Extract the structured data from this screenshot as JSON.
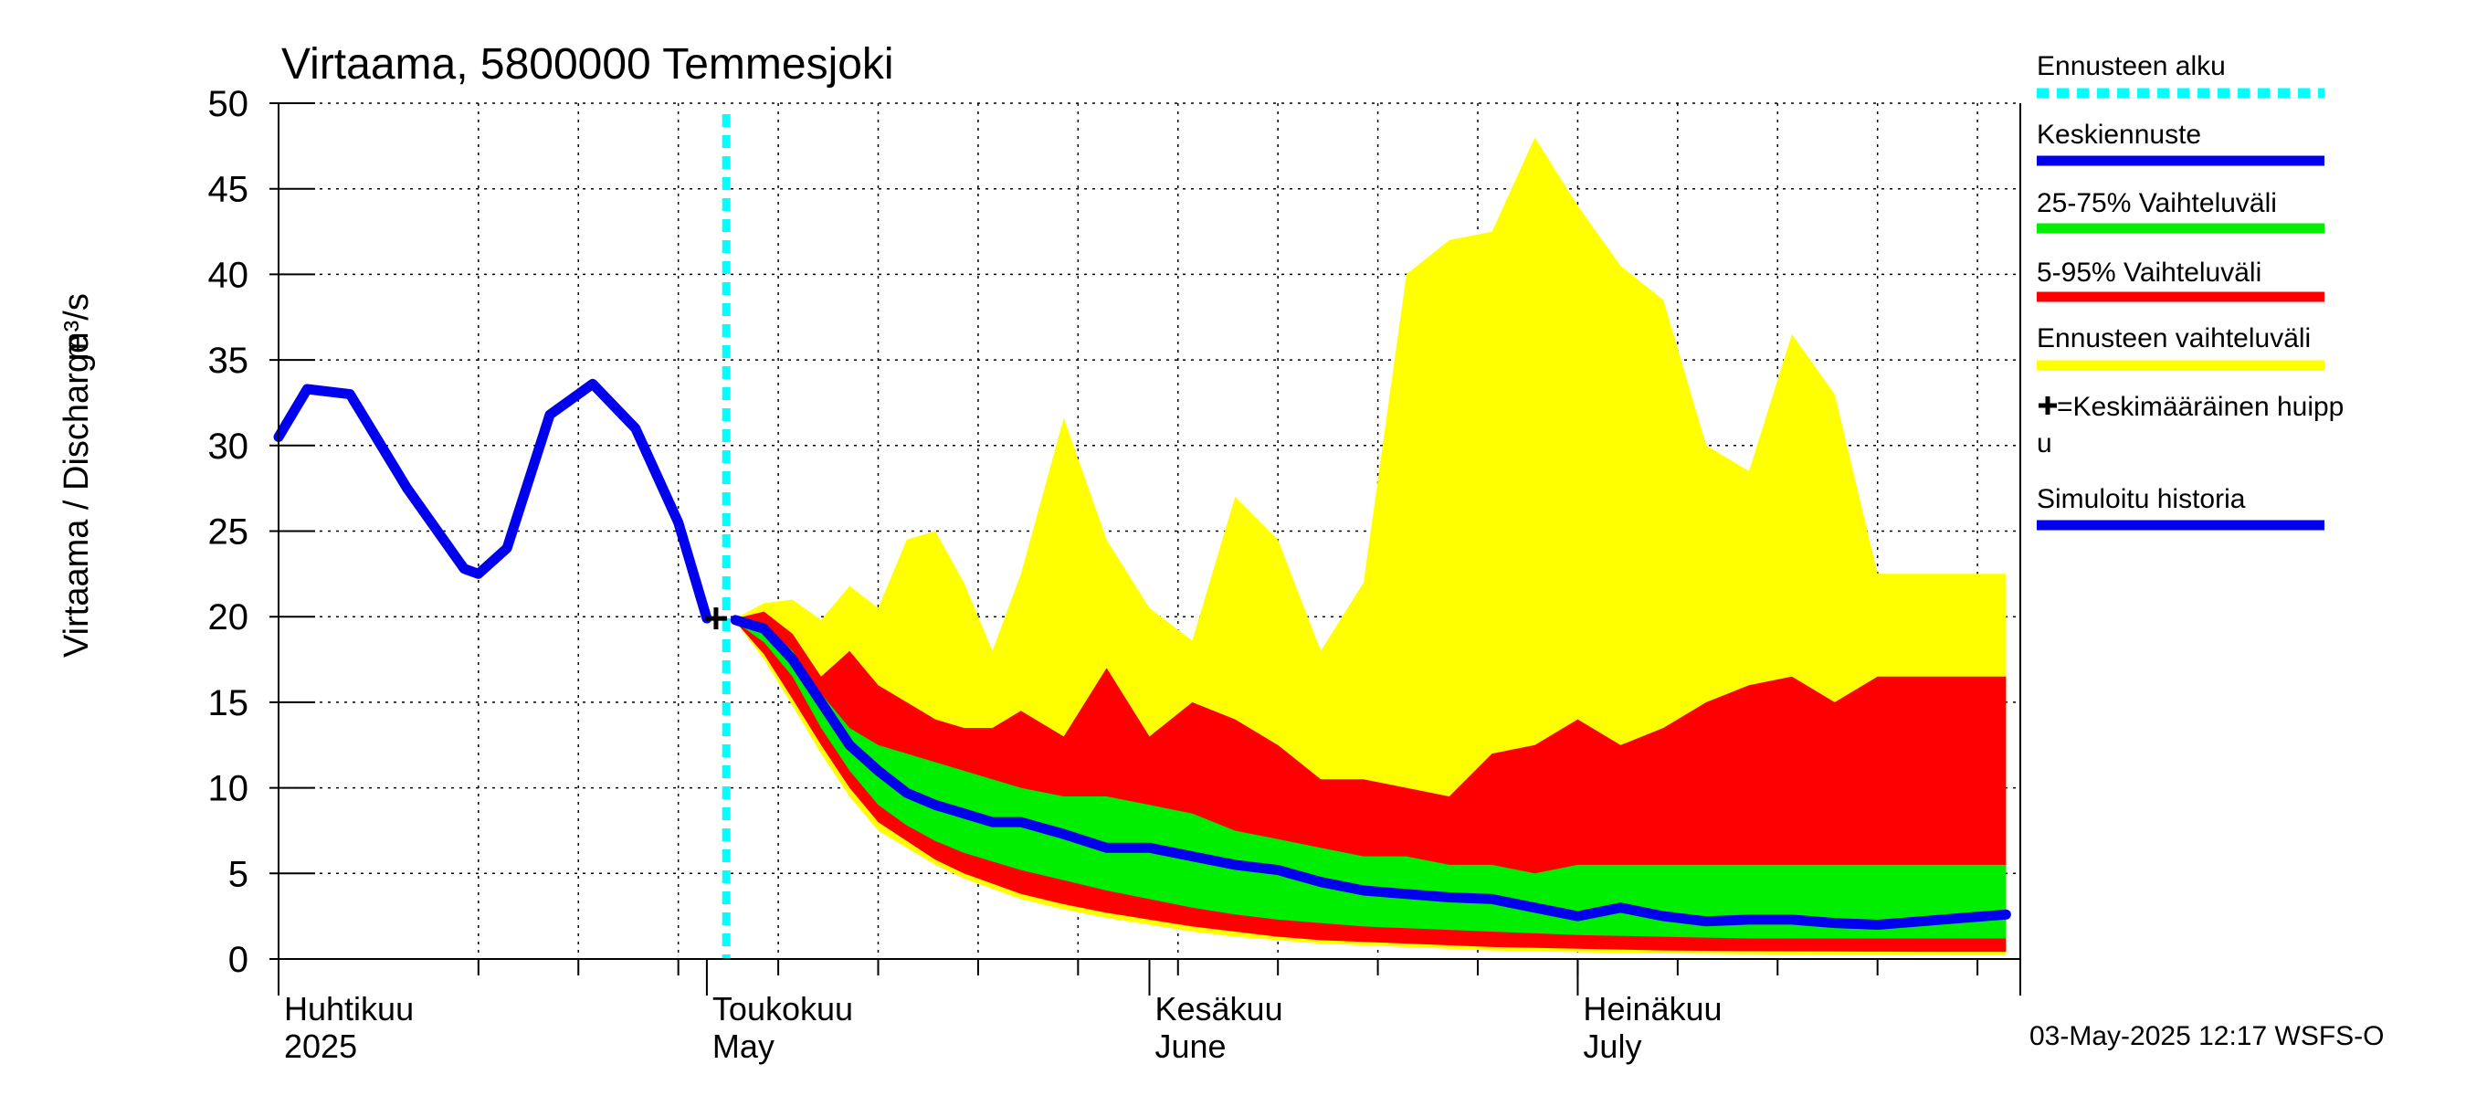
{
  "chart_data": {
    "type": "area",
    "title": "Virtaama, 5800000 Temmesjoki",
    "ylabel": "Virtaama / Discharge",
    "yunit": "m³/s",
    "ylim": [
      0,
      50
    ],
    "yticks": [
      "0",
      "5",
      "10",
      "15",
      "20",
      "25",
      "30",
      "35",
      "40",
      "45",
      "50"
    ],
    "xlim": [
      "2025-04-01",
      "2025-07-31"
    ],
    "grid": true,
    "legend_position": "right",
    "month_ticks": [
      {
        "date": "2025-04-01",
        "label": "Huhtikuu",
        "sublabel": "2025"
      },
      {
        "date": "2025-05-01",
        "label": "Toukokuu",
        "sublabel": "May"
      },
      {
        "date": "2025-06-01",
        "label": "Kesäkuu",
        "sublabel": "June"
      },
      {
        "date": "2025-07-01",
        "label": "Heinäkuu",
        "sublabel": "July"
      }
    ],
    "forecast_start": "2025-05-03",
    "mean_peak": {
      "date": "2025-05-01",
      "value": 19.9
    },
    "x": [
      "2025-04-01",
      "2025-04-03",
      "2025-04-06",
      "2025-04-10",
      "2025-04-14",
      "2025-04-15",
      "2025-04-17",
      "2025-04-20",
      "2025-04-23",
      "2025-04-26",
      "2025-04-29",
      "2025-05-01",
      "2025-05-03",
      "2025-05-05",
      "2025-05-07",
      "2025-05-09",
      "2025-05-11",
      "2025-05-13",
      "2025-05-15",
      "2025-05-17",
      "2025-05-19",
      "2025-05-21",
      "2025-05-23",
      "2025-05-26",
      "2025-05-29",
      "2025-06-01",
      "2025-06-04",
      "2025-06-07",
      "2025-06-10",
      "2025-06-13",
      "2025-06-16",
      "2025-06-19",
      "2025-06-22",
      "2025-06-25",
      "2025-06-28",
      "2025-07-01",
      "2025-07-04",
      "2025-07-07",
      "2025-07-10",
      "2025-07-13",
      "2025-07-16",
      "2025-07-19",
      "2025-07-22",
      "2025-07-25",
      "2025-07-28",
      "2025-07-31"
    ],
    "series": [
      {
        "name": "Ennusteen vaihteluväli",
        "color": "#ffff00",
        "type": "band",
        "upper": [
          null,
          null,
          null,
          null,
          null,
          null,
          null,
          null,
          null,
          null,
          null,
          null,
          19.9,
          20.8,
          21.0,
          19.8,
          21.8,
          20.5,
          24.5,
          25.0,
          22.0,
          18.0,
          22.5,
          31.6,
          24.5,
          20.5,
          18.6,
          27.0,
          24.5,
          18.0,
          22.0,
          40.0,
          42.0,
          42.5,
          48.0,
          44.0,
          40.5,
          38.5,
          30.0,
          28.5,
          36.5,
          33.0,
          22.5,
          22.5,
          22.5,
          22.5
        ],
        "lower": [
          null,
          null,
          null,
          null,
          null,
          null,
          null,
          null,
          null,
          null,
          null,
          null,
          19.7,
          17.5,
          14.8,
          12.0,
          9.5,
          7.5,
          6.5,
          5.5,
          4.7,
          4.1,
          3.5,
          2.9,
          2.4,
          2.0,
          1.6,
          1.3,
          1.1,
          0.9,
          0.8,
          0.7,
          0.6,
          0.5,
          0.45,
          0.4,
          0.35,
          0.32,
          0.3,
          0.28,
          0.26,
          0.25,
          0.24,
          0.23,
          0.22,
          0.22
        ]
      },
      {
        "name": "5-95% Vaihteluväli",
        "color": "#ff0000",
        "type": "band",
        "upper": [
          null,
          null,
          null,
          null,
          null,
          null,
          null,
          null,
          null,
          null,
          null,
          null,
          19.9,
          20.3,
          19.0,
          16.5,
          18.0,
          16.0,
          15.0,
          14.0,
          13.5,
          13.5,
          14.5,
          13.0,
          17.0,
          13.0,
          15.0,
          14.0,
          12.5,
          10.5,
          10.5,
          10.0,
          9.5,
          12.0,
          12.5,
          14.0,
          12.5,
          13.5,
          15.0,
          16.0,
          16.5,
          15.0,
          16.5,
          16.5,
          16.5,
          16.5
        ],
        "lower": [
          null,
          null,
          null,
          null,
          null,
          null,
          null,
          null,
          null,
          null,
          null,
          null,
          19.7,
          17.8,
          15.2,
          12.5,
          10.0,
          8.0,
          6.9,
          5.8,
          5.0,
          4.4,
          3.8,
          3.2,
          2.7,
          2.3,
          1.9,
          1.6,
          1.3,
          1.1,
          1.0,
          0.9,
          0.8,
          0.7,
          0.65,
          0.6,
          0.55,
          0.5,
          0.48,
          0.46,
          0.45,
          0.44,
          0.43,
          0.42,
          0.42,
          0.42
        ]
      },
      {
        "name": "25-75% Vaihteluväli",
        "color": "#00ee00",
        "type": "band",
        "upper": [
          null,
          null,
          null,
          null,
          null,
          null,
          null,
          null,
          null,
          null,
          null,
          null,
          19.8,
          19.5,
          18.0,
          15.5,
          13.5,
          12.5,
          12.0,
          11.5,
          11.0,
          10.5,
          10.0,
          9.5,
          9.5,
          9.0,
          8.5,
          7.5,
          7.0,
          6.5,
          6.0,
          6.0,
          5.5,
          5.5,
          5.0,
          5.5,
          5.5,
          5.5,
          5.5,
          5.5,
          5.5,
          5.5,
          5.5,
          5.5,
          5.5,
          5.5
        ],
        "lower": [
          null,
          null,
          null,
          null,
          null,
          null,
          null,
          null,
          null,
          null,
          null,
          null,
          19.7,
          18.5,
          16.5,
          13.5,
          11.0,
          9.0,
          7.8,
          6.9,
          6.2,
          5.7,
          5.2,
          4.6,
          4.0,
          3.5,
          3.0,
          2.6,
          2.3,
          2.1,
          1.9,
          1.8,
          1.7,
          1.6,
          1.5,
          1.4,
          1.35,
          1.3,
          1.25,
          1.2,
          1.2,
          1.2,
          1.2,
          1.2,
          1.2,
          1.2
        ]
      },
      {
        "name": "Keskiennuste",
        "color": "#0000ee",
        "type": "line",
        "values": [
          null,
          null,
          null,
          null,
          null,
          null,
          null,
          null,
          null,
          null,
          null,
          null,
          19.8,
          19.3,
          17.5,
          15.0,
          12.5,
          11.0,
          9.7,
          9.0,
          8.5,
          8.0,
          8.0,
          7.3,
          6.5,
          6.5,
          6.0,
          5.5,
          5.2,
          4.5,
          4.0,
          3.8,
          3.6,
          3.5,
          3.0,
          2.5,
          3.0,
          2.5,
          2.2,
          2.3,
          2.3,
          2.1,
          2.0,
          2.2,
          2.4,
          2.6
        ]
      },
      {
        "name": "Simuloitu historia",
        "color": "#0000ee",
        "type": "line",
        "values": [
          30.5,
          33.3,
          33.0,
          27.5,
          22.8,
          22.5,
          24.0,
          31.8,
          33.6,
          31.0,
          25.5,
          19.9,
          null,
          null,
          null,
          null,
          null,
          null,
          null,
          null,
          null,
          null,
          null,
          null,
          null,
          null,
          null,
          null,
          null,
          null,
          null,
          null,
          null,
          null,
          null,
          null,
          null,
          null,
          null,
          null,
          null,
          null,
          null,
          null,
          null,
          null
        ]
      }
    ],
    "legend": [
      {
        "key": "forecast_start",
        "label": "Ennusteen alku",
        "color": "#00ffff",
        "style": "dotted"
      },
      {
        "key": "median",
        "label": "Keskiennuste",
        "color": "#0000ee",
        "style": "solid"
      },
      {
        "key": "p25_75",
        "label": "25-75% Vaihteluväli",
        "color": "#00ee00",
        "style": "solid"
      },
      {
        "key": "p5_95",
        "label": "5-95% Vaihteluväli",
        "color": "#ff0000",
        "style": "solid"
      },
      {
        "key": "range",
        "label": "Ennusteen vaihteluväli",
        "color": "#ffff00",
        "style": "solid"
      },
      {
        "key": "peak",
        "label": "=Keskimääräinen huipp",
        "label2": "u",
        "marker": "plus"
      },
      {
        "key": "history",
        "label": "Simuloitu historia",
        "color": "#0000ee",
        "style": "solid"
      }
    ]
  },
  "footer": {
    "timestamp": "03-May-2025 12:17 WSFS-O"
  }
}
